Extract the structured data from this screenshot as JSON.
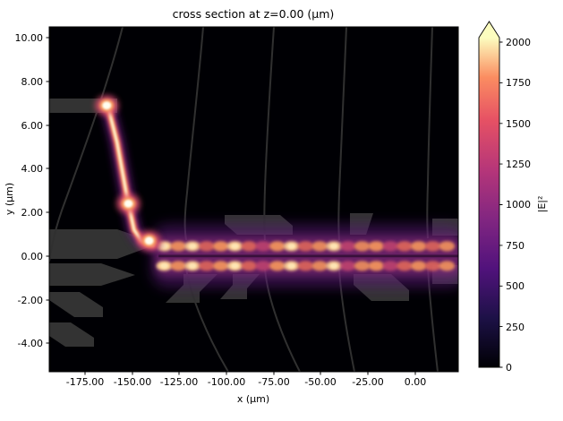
{
  "figure": {
    "title": "cross section at z=0.00 (μm)",
    "xlabel": "x (μm)",
    "ylabel": "y (μm)"
  },
  "axes": {
    "x_tick_labels": [
      "-175.00",
      "-150.00",
      "-125.00",
      "-100.00",
      "-75.00",
      "-50.00",
      "-25.00",
      "0.00"
    ],
    "y_tick_labels": [
      "10.00",
      "8.00",
      "6.00",
      "4.00",
      "2.00",
      "0.00",
      "-2.00",
      "-4.00"
    ]
  },
  "colorbar": {
    "label": "|E|²",
    "tick_labels": [
      "0",
      "250",
      "500",
      "750",
      "1000",
      "1250",
      "1500",
      "1750",
      "2000"
    ]
  },
  "chart_data": {
    "type": "heatmap",
    "title": "cross section at z=0.00 (μm)",
    "xlabel": "x (μm)",
    "ylabel": "y (μm)",
    "xlim": [
      -194,
      23
    ],
    "ylim": [
      -5.3,
      10.5
    ],
    "x_ticks": [
      -175,
      -150,
      -125,
      -100,
      -75,
      -50,
      -25,
      0
    ],
    "y_ticks": [
      10,
      8,
      6,
      4,
      2,
      0,
      -2,
      -4
    ],
    "grid": false,
    "colormap": "magma",
    "colorbar": {
      "label": "|E|²",
      "vmin": 0,
      "vmax": 2000,
      "ticks": [
        0,
        250,
        500,
        750,
        1000,
        1250,
        1500,
        1750,
        2000
      ],
      "extend": "max"
    },
    "background_value": 0,
    "description": "Simulated |E|² field cross-section at z=0 over a photonic chip layout. Faint dark-gray geometry outlines (waveguides/electrodes) sit on a near-zero black background. Light enters at upper left (y≈6.9 μm), follows a bright s-bend down to y≈0.5 μm, then propagates rightward as a two-lobed beating mode centered on y≈0 all the way to the right edge.",
    "field": {
      "spots": [
        {
          "x": -163.5,
          "y": 6.9,
          "intensity": 2050,
          "note": "saturated input-waveguide hot spot"
        },
        {
          "x": -152.0,
          "y": 2.4,
          "intensity": 1900,
          "note": "hot spot on descending bend"
        },
        {
          "x": -141.0,
          "y": 0.7,
          "intensity": 2000,
          "note": "hot spot at bend apex"
        }
      ],
      "s_bend": {
        "points": [
          [
            -163,
            6.9
          ],
          [
            -158,
            5.2
          ],
          [
            -152.5,
            2.6
          ],
          [
            -149,
            1.2
          ],
          [
            -145,
            0.7
          ],
          [
            -139,
            0.5
          ]
        ],
        "intensity": 1800,
        "note": "bright guided mode descending from y≈6.9 μm to y≈0.5 μm between x≈-163 and x≈-139 μm"
      },
      "stripe": {
        "x_range": [
          -136,
          23
        ],
        "lobe_offset": 0.45,
        "halo_half_width": 1.45,
        "lobe_spacing": 7.5,
        "note": "horizontal two-lobed guided mode along y≈0 with periodic beating, intensity ≈900–1450",
        "lobes": [
          {
            "x": -133,
            "I": 1450
          },
          {
            "x": -125.5,
            "I": 1200
          },
          {
            "x": -118,
            "I": 1350
          },
          {
            "x": -110.5,
            "I": 1000
          },
          {
            "x": -103,
            "I": 1250
          },
          {
            "x": -95.5,
            "I": 1400
          },
          {
            "x": -88,
            "I": 1050
          },
          {
            "x": -80.5,
            "I": 900
          },
          {
            "x": -73,
            "I": 1250
          },
          {
            "x": -65.5,
            "I": 1350
          },
          {
            "x": -58,
            "I": 1000
          },
          {
            "x": -50.5,
            "I": 1150
          },
          {
            "x": -43,
            "I": 1300
          },
          {
            "x": -35.5,
            "I": 950
          },
          {
            "x": -28,
            "I": 1100
          },
          {
            "x": -20.5,
            "I": 1250
          },
          {
            "x": -13,
            "I": 900
          },
          {
            "x": -5.5,
            "I": 1050
          },
          {
            "x": 2,
            "I": 1200
          },
          {
            "x": 9.5,
            "I": 1000
          },
          {
            "x": 17,
            "I": 1150
          }
        ]
      }
    }
  }
}
